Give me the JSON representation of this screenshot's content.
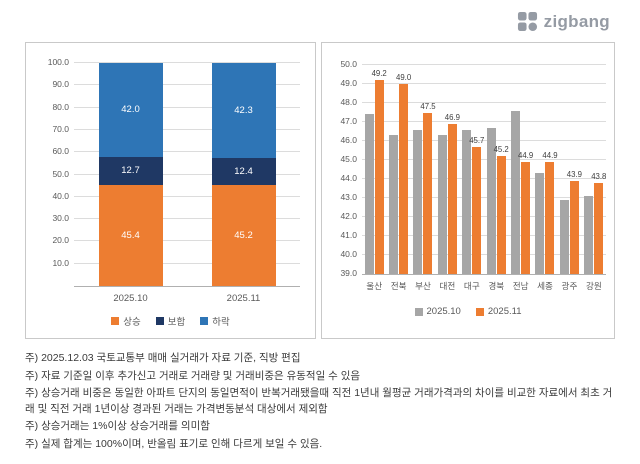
{
  "logo": {
    "brand": "zigbang"
  },
  "chart_data": [
    {
      "type": "bar",
      "variant": "stacked",
      "title": "",
      "categories": [
        "2025.10",
        "2025.11"
      ],
      "series": [
        {
          "name": "상승",
          "color": "#ED7D31",
          "values": [
            45.4,
            45.2
          ]
        },
        {
          "name": "보합",
          "color": "#1F3864",
          "values": [
            12.7,
            12.4
          ]
        },
        {
          "name": "하락",
          "color": "#2E75B6",
          "values": [
            42.0,
            42.3
          ]
        }
      ],
      "ylim": [
        0,
        100
      ],
      "ytick_step": 10,
      "ytick_labels": [
        "100.0",
        "90.0",
        "80.0",
        "70.0",
        "60.0",
        "50.0",
        "40.0",
        "30.0",
        "20.0",
        "10.0"
      ],
      "grid": true,
      "data_labels": "inside",
      "legend_position": "bottom"
    },
    {
      "type": "bar",
      "variant": "grouped",
      "title": "",
      "categories": [
        "울산",
        "전북",
        "부산",
        "대전",
        "대구",
        "경북",
        "전남",
        "세종",
        "광주",
        "강원"
      ],
      "series": [
        {
          "name": "2025.10",
          "color": "#A6A6A6",
          "data_labels": false,
          "values": [
            47.4,
            46.3,
            46.6,
            46.3,
            46.6,
            46.7,
            47.6,
            44.3,
            42.9,
            43.1
          ]
        },
        {
          "name": "2025.11",
          "color": "#ED7D31",
          "data_labels": true,
          "values": [
            49.2,
            49.0,
            47.5,
            46.9,
            45.7,
            45.2,
            44.9,
            44.9,
            43.9,
            43.8
          ]
        }
      ],
      "ylim": [
        39,
        50
      ],
      "ytick_step": 1,
      "ytick_labels": [
        "50.0",
        "49.0",
        "48.0",
        "47.0",
        "46.0",
        "45.0",
        "44.0",
        "43.0",
        "42.0",
        "41.0",
        "40.0",
        "39.0"
      ],
      "grid": true,
      "legend_position": "bottom"
    }
  ],
  "notes": [
    "주) 2025.12.03 국토교통부 매매 실거래가 자료 기준, 직방 편집",
    "주) 자료 기준일 이후 추가신고 거래로 거래량 및 거래비중은 유동적일 수 있음",
    "주) 상승거래 비중은 동일한 아파트 단지의 동일면적이 반복거래됐을때 직전 1년내 월평균 거래가격과의 차이를 비교한 자료에서 최초 거래 및 직전 거래 1년이상 경과된 거래는 가격변동분석 대상에서 제외함",
    "주) 상승거래는 1%이상 상승거래를 의미함",
    "주) 실제 합계는 100%이며, 반올림 표기로 인해 다르게 보일 수 있음."
  ]
}
